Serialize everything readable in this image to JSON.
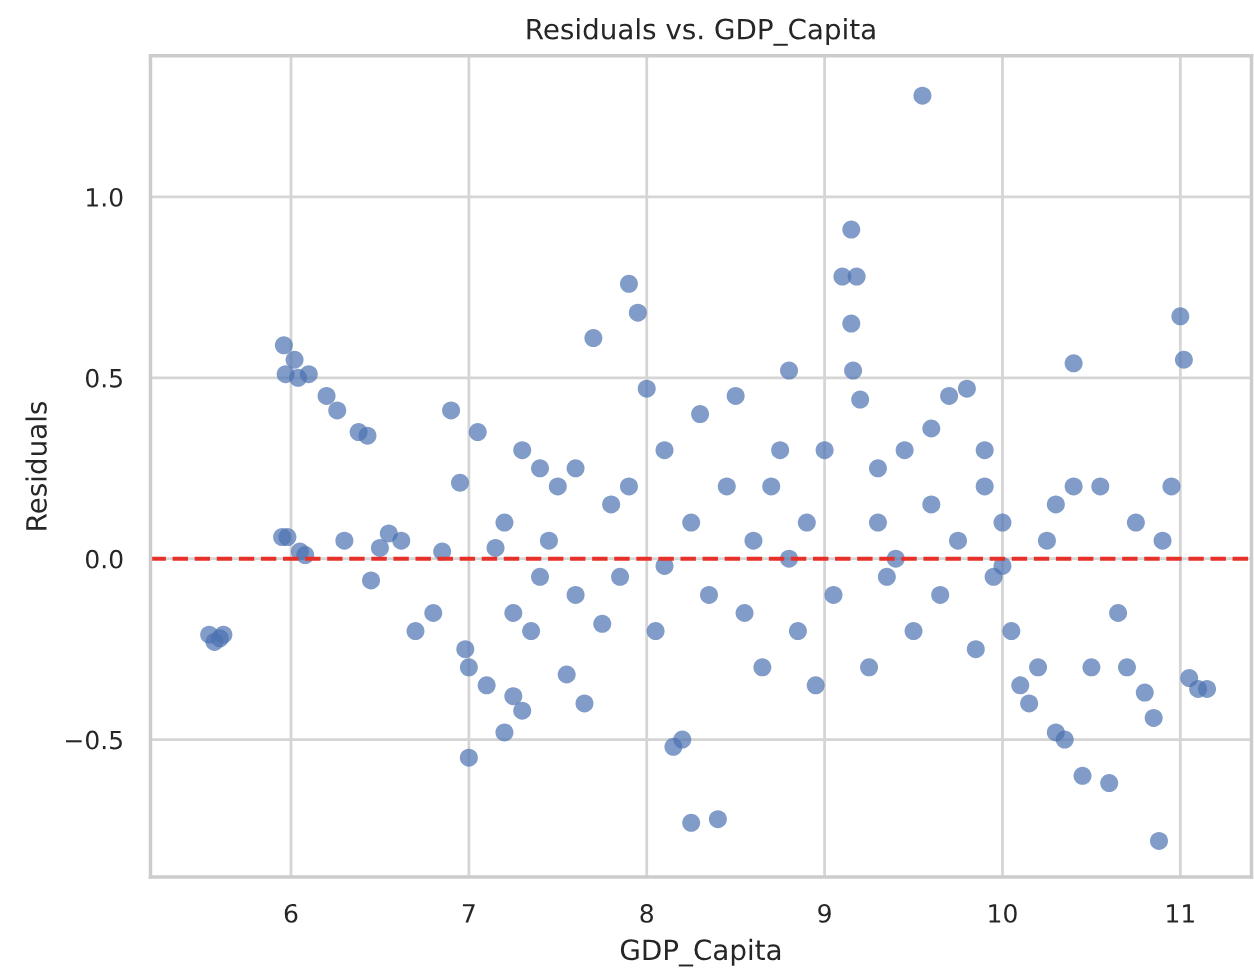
{
  "chart_data": {
    "type": "scatter",
    "title": "Residuals vs. GDP_Capita",
    "xlabel": "GDP_Capita",
    "ylabel": "Residuals",
    "xlim": [
      5.21,
      11.4
    ],
    "ylim": [
      -0.88,
      1.39
    ],
    "xticks": [
      6,
      7,
      8,
      9,
      10,
      11
    ],
    "yticks": [
      {
        "value": -0.5,
        "label": "−0.5"
      },
      {
        "value": 0.0,
        "label": "0.0"
      },
      {
        "value": 0.5,
        "label": "0.5"
      },
      {
        "value": 1.0,
        "label": "1.0"
      }
    ],
    "grid": true,
    "marker": "circle",
    "ref_lines": [
      {
        "axis": "y",
        "value": 0,
        "label": null,
        "color": "#e8302a",
        "line_style": "dashed"
      }
    ],
    "series": [
      {
        "color": "#4c72b0",
        "x": [
          5.54,
          5.57,
          5.6,
          5.62,
          5.96,
          6.02,
          5.97,
          6.04,
          6.1,
          6.2,
          6.26,
          6.38,
          6.43,
          5.95,
          5.98,
          6.05,
          6.08,
          6.3,
          6.45,
          6.5,
          6.55,
          6.62,
          6.7,
          6.8,
          6.85,
          6.9,
          6.95,
          6.98,
          7.0,
          7.05,
          7.0,
          7.1,
          7.2,
          7.25,
          7.3,
          7.15,
          7.2,
          7.3,
          7.35,
          7.4,
          7.45,
          7.5,
          7.55,
          7.6,
          7.65,
          7.7,
          7.75,
          7.8,
          7.85,
          7.9,
          7.95,
          8.0,
          8.05,
          8.1,
          8.15,
          8.2,
          8.25,
          8.4,
          8.3,
          8.35,
          8.45,
          8.5,
          8.55,
          8.6,
          8.65,
          8.7,
          8.8,
          8.85,
          8.9,
          8.95,
          9.0,
          9.05,
          9.1,
          9.15,
          9.18,
          9.15,
          9.16,
          9.2,
          9.25,
          9.3,
          9.35,
          9.45,
          9.5,
          9.55,
          9.6,
          9.65,
          9.7,
          9.75,
          9.8,
          9.85,
          9.9,
          9.95,
          10.0,
          10.05,
          10.1,
          10.15,
          10.2,
          10.25,
          10.3,
          10.35,
          10.4,
          10.45,
          10.5,
          10.55,
          10.6,
          10.65,
          10.7,
          10.75,
          10.8,
          10.85,
          10.88,
          10.9,
          10.95,
          11.0,
          11.02,
          11.05,
          11.1,
          11.15,
          10.3,
          9.9,
          9.3,
          8.75,
          8.25,
          7.9,
          7.6,
          9.4,
          10.0,
          8.1,
          8.8,
          9.6,
          10.4,
          7.4,
          7.25
        ],
        "values": [
          -0.21,
          -0.23,
          -0.22,
          -0.21,
          0.59,
          0.55,
          0.51,
          0.5,
          0.51,
          0.45,
          0.41,
          0.35,
          0.34,
          0.06,
          0.06,
          0.02,
          0.01,
          0.05,
          -0.06,
          0.03,
          0.07,
          0.05,
          -0.2,
          -0.15,
          0.02,
          0.41,
          0.21,
          -0.25,
          -0.55,
          0.35,
          -0.3,
          -0.35,
          -0.48,
          -0.38,
          -0.42,
          0.03,
          0.1,
          0.3,
          -0.2,
          -0.05,
          0.05,
          0.2,
          -0.32,
          0.25,
          -0.4,
          0.61,
          -0.18,
          0.15,
          -0.05,
          0.76,
          0.68,
          0.47,
          -0.2,
          0.3,
          -0.52,
          -0.5,
          -0.73,
          -0.72,
          0.4,
          -0.1,
          0.2,
          0.45,
          -0.15,
          0.05,
          -0.3,
          0.2,
          0.52,
          -0.2,
          0.1,
          -0.35,
          0.3,
          -0.1,
          0.78,
          0.91,
          0.78,
          0.65,
          0.52,
          0.44,
          -0.3,
          0.25,
          -0.05,
          0.3,
          -0.2,
          1.28,
          0.36,
          -0.1,
          0.45,
          0.05,
          0.47,
          -0.25,
          0.2,
          -0.05,
          0.1,
          -0.2,
          -0.35,
          -0.4,
          -0.3,
          0.05,
          -0.48,
          -0.5,
          0.54,
          -0.6,
          -0.3,
          0.2,
          -0.62,
          -0.15,
          -0.3,
          0.1,
          -0.37,
          -0.44,
          -0.78,
          0.05,
          0.2,
          0.67,
          0.55,
          -0.33,
          -0.36,
          -0.36,
          0.15,
          0.3,
          0.1,
          0.3,
          0.1,
          0.2,
          -0.1,
          0.0,
          -0.02,
          -0.02,
          0.0,
          0.15,
          0.2,
          0.25,
          -0.15
        ]
      }
    ]
  }
}
